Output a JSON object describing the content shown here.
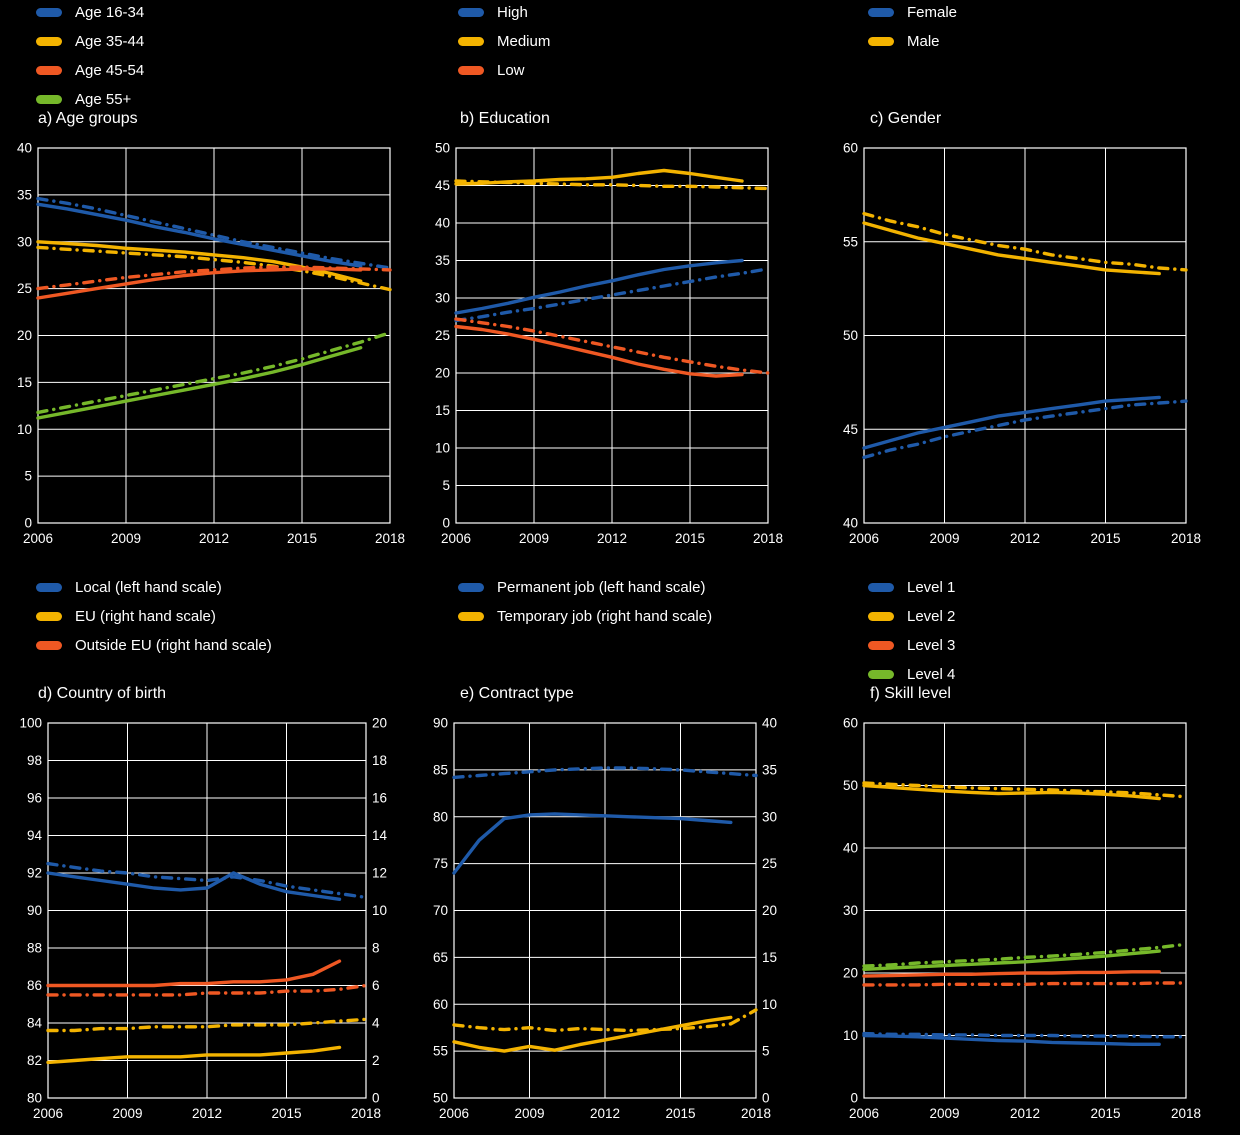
{
  "page": {
    "background": "#000000",
    "text_color": "#ffffff"
  },
  "colors": {
    "blue": "#1f5aa9",
    "yellow": "#f3b300",
    "orange": "#ef5823",
    "green": "#76b82a"
  },
  "chart_data": [
    {
      "id": "age-groups",
      "type": "line",
      "title": "a) Age groups",
      "legend": [
        {
          "label": "Age 16-34",
          "color": "blue"
        },
        {
          "label": "Age 35-44",
          "color": "yellow"
        },
        {
          "label": "Age 45-54",
          "color": "orange"
        },
        {
          "label": "Age 55+",
          "color": "green"
        }
      ],
      "years": [
        2006,
        2007,
        2008,
        2009,
        2010,
        2011,
        2012,
        2013,
        2014,
        2015,
        2016,
        2017,
        2018
      ],
      "x_ticks": [
        2006,
        2009,
        2012,
        2015,
        2018
      ],
      "y_left": {
        "min": 0,
        "max": 40,
        "step": 5
      },
      "series": [
        {
          "key": "age-16-34-solid",
          "color": "blue",
          "style": "solid",
          "axis": "left",
          "values": [
            34.0,
            33.5,
            32.9,
            32.3,
            31.6,
            31.0,
            30.3,
            29.7,
            29.1,
            28.5,
            27.9,
            27.4
          ]
        },
        {
          "key": "age-16-34-dashdot",
          "color": "blue",
          "style": "dashdot",
          "axis": "left",
          "values": [
            34.6,
            34.1,
            33.5,
            32.8,
            32.1,
            31.4,
            30.7,
            30.0,
            29.4,
            28.8,
            28.2,
            27.7,
            27.2
          ]
        },
        {
          "key": "age-35-44-solid",
          "color": "yellow",
          "style": "solid",
          "axis": "left",
          "values": [
            30.0,
            29.8,
            29.6,
            29.3,
            29.1,
            28.9,
            28.6,
            28.3,
            27.9,
            27.3,
            26.6,
            25.8
          ]
        },
        {
          "key": "age-35-44-dashdot",
          "color": "yellow",
          "style": "dashdot",
          "axis": "left",
          "values": [
            29.4,
            29.2,
            29.0,
            28.8,
            28.6,
            28.4,
            28.1,
            27.8,
            27.4,
            26.9,
            26.3,
            25.6,
            24.9
          ]
        },
        {
          "key": "age-45-54-solid",
          "color": "orange",
          "style": "solid",
          "axis": "left",
          "values": [
            24.0,
            24.5,
            25.0,
            25.5,
            26.0,
            26.4,
            26.7,
            26.9,
            27.0,
            27.1,
            27.1,
            27.0
          ]
        },
        {
          "key": "age-45-54-dashdot",
          "color": "orange",
          "style": "dashdot",
          "axis": "left",
          "values": [
            25.0,
            25.4,
            25.8,
            26.2,
            26.5,
            26.8,
            27.0,
            27.2,
            27.3,
            27.3,
            27.2,
            27.1,
            27.0
          ]
        },
        {
          "key": "age-55-plus-solid",
          "color": "green",
          "style": "solid",
          "axis": "left",
          "values": [
            11.2,
            11.8,
            12.4,
            13.0,
            13.6,
            14.2,
            14.8,
            15.4,
            16.1,
            16.9,
            17.8,
            18.7
          ]
        },
        {
          "key": "age-55-plus-dashdot",
          "color": "green",
          "style": "dashdot",
          "axis": "left",
          "values": [
            11.8,
            12.4,
            13.0,
            13.6,
            14.2,
            14.8,
            15.4,
            16.0,
            16.7,
            17.5,
            18.4,
            19.3,
            20.3
          ]
        }
      ]
    },
    {
      "id": "education",
      "type": "line",
      "title": "b) Education",
      "legend": [
        {
          "label": "High",
          "color": "blue"
        },
        {
          "label": "Medium",
          "color": "yellow"
        },
        {
          "label": "Low",
          "color": "orange"
        }
      ],
      "years": [
        2006,
        2007,
        2008,
        2009,
        2010,
        2011,
        2012,
        2013,
        2014,
        2015,
        2016,
        2017,
        2018
      ],
      "x_ticks": [
        2006,
        2009,
        2012,
        2015,
        2018
      ],
      "y_left": {
        "min": 0,
        "max": 50,
        "step": 5
      },
      "series": [
        {
          "key": "medium-solid",
          "color": "yellow",
          "style": "solid",
          "axis": "left",
          "values": [
            45.2,
            45.3,
            45.5,
            45.6,
            45.8,
            45.9,
            46.1,
            46.6,
            47.0,
            46.6,
            46.1,
            45.6
          ]
        },
        {
          "key": "medium-dashdot",
          "color": "yellow",
          "style": "dashdot",
          "axis": "left",
          "values": [
            45.6,
            45.5,
            45.4,
            45.3,
            45.2,
            45.1,
            45.1,
            45.0,
            44.9,
            44.9,
            44.8,
            44.7,
            44.6
          ]
        },
        {
          "key": "high-solid",
          "color": "blue",
          "style": "solid",
          "axis": "left",
          "values": [
            28.0,
            28.6,
            29.3,
            30.1,
            30.8,
            31.6,
            32.3,
            33.1,
            33.8,
            34.3,
            34.7,
            35.0
          ]
        },
        {
          "key": "high-dashdot",
          "color": "blue",
          "style": "dashdot",
          "axis": "left",
          "values": [
            27.0,
            27.5,
            28.1,
            28.6,
            29.2,
            29.8,
            30.4,
            31.0,
            31.6,
            32.2,
            32.8,
            33.3,
            33.9
          ]
        },
        {
          "key": "low-solid",
          "color": "orange",
          "style": "solid",
          "axis": "left",
          "values": [
            26.2,
            25.8,
            25.2,
            24.5,
            23.7,
            22.9,
            22.1,
            21.2,
            20.5,
            19.9,
            19.6,
            19.8
          ]
        },
        {
          "key": "low-dashdot",
          "color": "orange",
          "style": "dashdot",
          "axis": "left",
          "values": [
            27.2,
            26.7,
            26.2,
            25.6,
            24.9,
            24.2,
            23.5,
            22.8,
            22.1,
            21.5,
            20.9,
            20.4,
            20.0
          ]
        }
      ]
    },
    {
      "id": "gender",
      "type": "line",
      "title": "c) Gender",
      "legend": [
        {
          "label": "Female",
          "color": "blue"
        },
        {
          "label": "Male",
          "color": "yellow"
        }
      ],
      "years": [
        2006,
        2007,
        2008,
        2009,
        2010,
        2011,
        2012,
        2013,
        2014,
        2015,
        2016,
        2017,
        2018
      ],
      "x_ticks": [
        2006,
        2009,
        2012,
        2015,
        2018
      ],
      "y_left": {
        "min": 40,
        "max": 60,
        "step": 5
      },
      "series": [
        {
          "key": "male-solid",
          "color": "yellow",
          "style": "solid",
          "axis": "left",
          "values": [
            56.0,
            55.6,
            55.2,
            54.9,
            54.6,
            54.3,
            54.1,
            53.9,
            53.7,
            53.5,
            53.4,
            53.3
          ]
        },
        {
          "key": "male-dashdot",
          "color": "yellow",
          "style": "dashdot",
          "axis": "left",
          "values": [
            56.5,
            56.1,
            55.8,
            55.4,
            55.1,
            54.8,
            54.6,
            54.3,
            54.1,
            53.9,
            53.8,
            53.6,
            53.5
          ]
        },
        {
          "key": "female-solid",
          "color": "blue",
          "style": "solid",
          "axis": "left",
          "values": [
            44.0,
            44.4,
            44.8,
            45.1,
            45.4,
            45.7,
            45.9,
            46.1,
            46.3,
            46.5,
            46.6,
            46.7
          ]
        },
        {
          "key": "female-dashdot",
          "color": "blue",
          "style": "dashdot",
          "axis": "left",
          "values": [
            43.5,
            43.9,
            44.2,
            44.6,
            44.9,
            45.2,
            45.5,
            45.7,
            45.9,
            46.1,
            46.3,
            46.4,
            46.5
          ]
        }
      ]
    },
    {
      "id": "country-of-birth",
      "type": "line",
      "title": "d) Country of birth",
      "legend": [
        {
          "label": "Local (left hand scale)",
          "color": "blue"
        },
        {
          "label": "EU (right hand scale)",
          "color": "yellow"
        },
        {
          "label": "Outside EU (right hand scale)",
          "color": "orange"
        }
      ],
      "years": [
        2006,
        2007,
        2008,
        2009,
        2010,
        2011,
        2012,
        2013,
        2014,
        2015,
        2016,
        2017,
        2018
      ],
      "x_ticks": [
        2006,
        2009,
        2012,
        2015,
        2018
      ],
      "y_left": {
        "min": 80,
        "max": 100,
        "step": 2
      },
      "y_right": {
        "min": 0,
        "max": 20,
        "step": 2
      },
      "series": [
        {
          "key": "local-solid",
          "color": "blue",
          "style": "solid",
          "axis": "left",
          "values": [
            92.0,
            91.8,
            91.6,
            91.4,
            91.2,
            91.1,
            91.2,
            92.0,
            91.4,
            91.0,
            90.8,
            90.6
          ]
        },
        {
          "key": "local-dashdot",
          "color": "blue",
          "style": "dashdot",
          "axis": "left",
          "values": [
            92.5,
            92.3,
            92.1,
            92.0,
            91.8,
            91.7,
            91.6,
            91.8,
            91.6,
            91.3,
            91.1,
            90.9,
            90.7
          ]
        },
        {
          "key": "outside-eu-solid",
          "color": "orange",
          "style": "solid",
          "axis": "right",
          "values": [
            6.0,
            6.0,
            6.0,
            6.0,
            6.0,
            6.1,
            6.1,
            6.2,
            6.2,
            6.3,
            6.6,
            7.3
          ]
        },
        {
          "key": "outside-eu-dashdot",
          "color": "orange",
          "style": "dashdot",
          "axis": "right",
          "values": [
            5.5,
            5.5,
            5.5,
            5.5,
            5.5,
            5.5,
            5.6,
            5.6,
            5.6,
            5.7,
            5.7,
            5.8,
            6.0
          ]
        },
        {
          "key": "eu-solid",
          "color": "yellow",
          "style": "solid",
          "axis": "right",
          "values": [
            1.9,
            2.0,
            2.1,
            2.2,
            2.2,
            2.2,
            2.3,
            2.3,
            2.3,
            2.4,
            2.5,
            2.7
          ]
        },
        {
          "key": "eu-dashdot",
          "color": "yellow",
          "style": "dashdot",
          "axis": "right",
          "values": [
            3.6,
            3.6,
            3.7,
            3.7,
            3.8,
            3.8,
            3.8,
            3.9,
            3.9,
            3.9,
            4.0,
            4.1,
            4.2
          ]
        }
      ]
    },
    {
      "id": "contract-type",
      "type": "line",
      "title": "e) Contract type",
      "legend": [
        {
          "label": "Permanent job (left hand scale)",
          "color": "blue"
        },
        {
          "label": "Temporary job (right hand scale)",
          "color": "yellow"
        }
      ],
      "years": [
        2006,
        2007,
        2008,
        2009,
        2010,
        2011,
        2012,
        2013,
        2014,
        2015,
        2016,
        2017,
        2018
      ],
      "x_ticks": [
        2006,
        2009,
        2012,
        2015,
        2018
      ],
      "y_left": {
        "min": 50,
        "max": 90,
        "step": 5
      },
      "y_right": {
        "min": 0,
        "max": 40,
        "step": 5
      },
      "series": [
        {
          "key": "permanent-solid",
          "color": "blue",
          "style": "solid",
          "axis": "left",
          "values": [
            74.0,
            77.5,
            79.8,
            80.2,
            80.3,
            80.2,
            80.1,
            80.0,
            79.9,
            79.8,
            79.6,
            79.4
          ]
        },
        {
          "key": "permanent-dashdot",
          "color": "blue",
          "style": "dashdot",
          "axis": "left",
          "values": [
            84.2,
            84.4,
            84.6,
            84.8,
            85.0,
            85.1,
            85.2,
            85.2,
            85.1,
            85.0,
            84.8,
            84.6,
            84.4
          ]
        },
        {
          "key": "temporary-solid",
          "color": "yellow",
          "style": "solid",
          "axis": "right",
          "values": [
            6.0,
            5.4,
            5.0,
            5.5,
            5.1,
            5.7,
            6.2,
            6.7,
            7.2,
            7.7,
            8.2,
            8.6
          ]
        },
        {
          "key": "temporary-dashdot",
          "color": "yellow",
          "style": "dashdot",
          "axis": "right",
          "values": [
            7.8,
            7.5,
            7.3,
            7.5,
            7.2,
            7.4,
            7.3,
            7.2,
            7.3,
            7.4,
            7.6,
            7.9,
            9.4
          ]
        }
      ]
    },
    {
      "id": "skill-level",
      "type": "line",
      "title": "f) Skill level",
      "legend": [
        {
          "label": "Level 1",
          "color": "blue"
        },
        {
          "label": "Level 2",
          "color": "yellow"
        },
        {
          "label": "Level 3",
          "color": "orange"
        },
        {
          "label": "Level 4",
          "color": "green"
        }
      ],
      "years": [
        2006,
        2007,
        2008,
        2009,
        2010,
        2011,
        2012,
        2013,
        2014,
        2015,
        2016,
        2017,
        2018
      ],
      "x_ticks": [
        2006,
        2009,
        2012,
        2015,
        2018
      ],
      "y_left": {
        "min": 0,
        "max": 60,
        "step": 10
      },
      "series": [
        {
          "key": "level-2-solid",
          "color": "yellow",
          "style": "solid",
          "axis": "left",
          "values": [
            50.0,
            49.7,
            49.4,
            49.1,
            48.9,
            48.7,
            48.8,
            48.9,
            48.8,
            48.6,
            48.3,
            47.9
          ]
        },
        {
          "key": "level-2-dashdot",
          "color": "yellow",
          "style": "dashdot",
          "axis": "left",
          "values": [
            50.4,
            50.2,
            50.0,
            49.8,
            49.6,
            49.5,
            49.4,
            49.3,
            49.1,
            49.0,
            48.8,
            48.5,
            48.2
          ]
        },
        {
          "key": "level-4-solid",
          "color": "green",
          "style": "solid",
          "axis": "left",
          "values": [
            20.6,
            20.8,
            21.0,
            21.2,
            21.4,
            21.6,
            21.8,
            22.1,
            22.4,
            22.7,
            23.1,
            23.5
          ]
        },
        {
          "key": "level-4-dashdot",
          "color": "green",
          "style": "dashdot",
          "axis": "left",
          "values": [
            21.1,
            21.3,
            21.6,
            21.8,
            22.0,
            22.2,
            22.5,
            22.7,
            23.0,
            23.3,
            23.7,
            24.1,
            24.6
          ]
        },
        {
          "key": "level-3-solid",
          "color": "orange",
          "style": "solid",
          "axis": "left",
          "values": [
            19.5,
            19.6,
            19.7,
            19.8,
            19.8,
            19.9,
            20.0,
            20.0,
            20.1,
            20.1,
            20.2,
            20.2
          ]
        },
        {
          "key": "level-3-dashdot",
          "color": "orange",
          "style": "dashdot",
          "axis": "left",
          "values": [
            18.1,
            18.1,
            18.1,
            18.2,
            18.2,
            18.2,
            18.2,
            18.3,
            18.3,
            18.3,
            18.3,
            18.4,
            18.4
          ]
        },
        {
          "key": "level-1-solid",
          "color": "blue",
          "style": "solid",
          "axis": "left",
          "values": [
            10.0,
            9.9,
            9.8,
            9.6,
            9.4,
            9.2,
            9.1,
            8.9,
            8.8,
            8.7,
            8.6,
            8.6
          ]
        },
        {
          "key": "level-1-dashdot",
          "color": "blue",
          "style": "dashdot",
          "axis": "left",
          "values": [
            10.3,
            10.2,
            10.2,
            10.1,
            10.1,
            10.0,
            10.0,
            10.0,
            9.9,
            9.9,
            9.9,
            9.8,
            9.8
          ]
        }
      ]
    }
  ]
}
